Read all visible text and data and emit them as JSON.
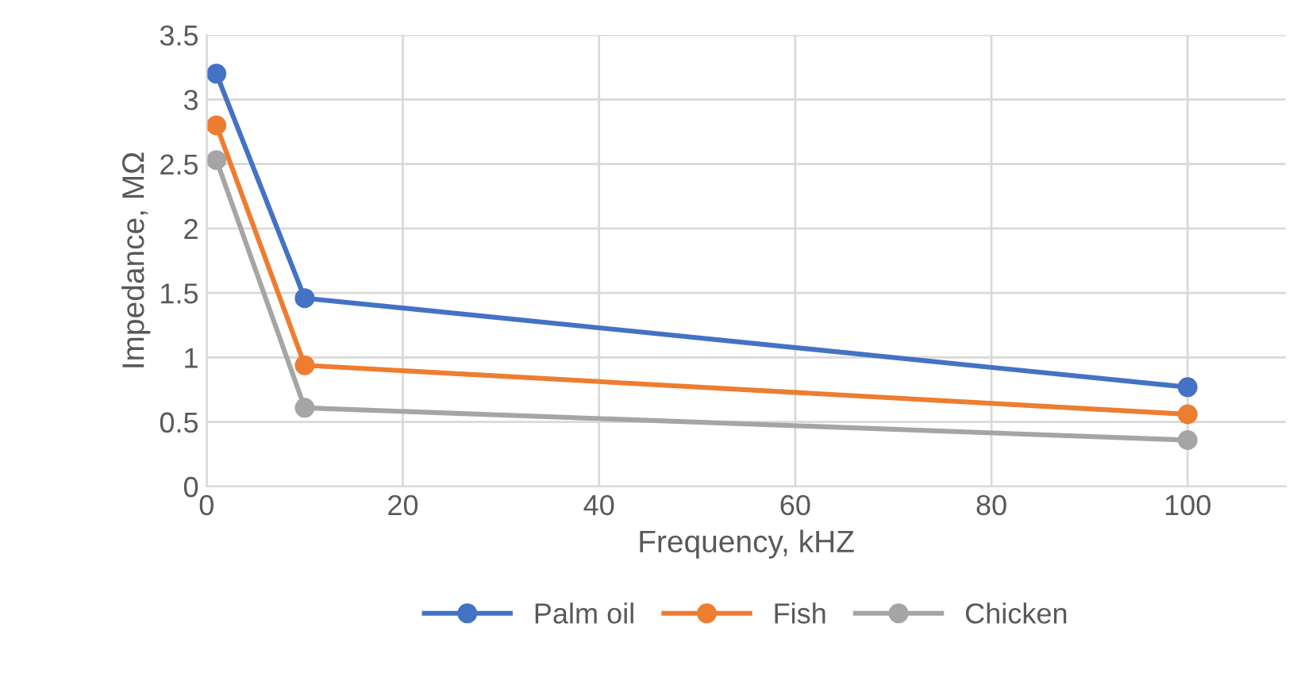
{
  "chart_data": {
    "type": "line",
    "xlabel": "Frequency, kHZ",
    "ylabel": "Impedance, MΩ",
    "x": [
      1,
      10,
      100
    ],
    "series": [
      {
        "name": "Palm oil",
        "color": "#4472c4",
        "values": [
          3.2,
          1.46,
          0.77
        ]
      },
      {
        "name": "Fish",
        "color": "#ed7d31",
        "values": [
          2.8,
          0.94,
          0.56
        ]
      },
      {
        "name": "Chicken",
        "color": "#a5a5a5",
        "values": [
          2.53,
          0.61,
          0.36
        ]
      }
    ],
    "xlim": [
      0,
      110
    ],
    "xticks": [
      0,
      20,
      40,
      60,
      80,
      100
    ],
    "ylim": [
      0,
      3.5
    ],
    "yticks": [
      0,
      {
        "value": 0.5,
        "label": "0.5"
      },
      1,
      {
        "value": 1.5,
        "label": "1.5"
      },
      2,
      {
        "value": 2.5,
        "label": "2.5"
      },
      3,
      {
        "value": 3.5,
        "label": "3.5"
      }
    ],
    "grid": true,
    "legend": "bottom",
    "marker": "circle",
    "line_style": "solid"
  }
}
